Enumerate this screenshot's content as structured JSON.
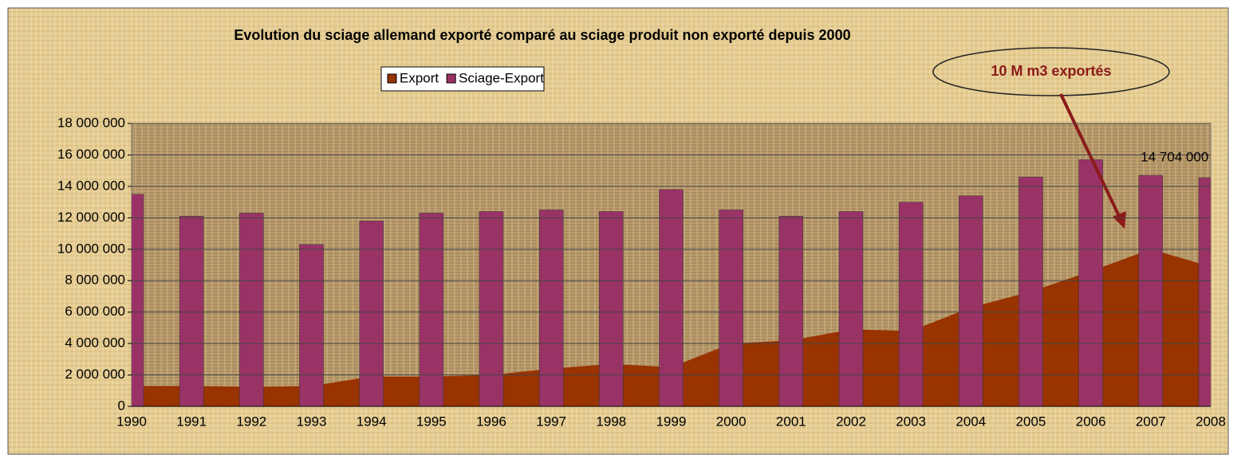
{
  "chart_data": {
    "type": "bar-area",
    "title": "Evolution du sciage allemand exporté comparé au sciage produit non exporté depuis 2000",
    "categories": [
      "1990",
      "1991",
      "1992",
      "1993",
      "1994",
      "1995",
      "1996",
      "1997",
      "1998",
      "1999",
      "2000",
      "2001",
      "2002",
      "2003",
      "2004",
      "2005",
      "2006",
      "2007",
      "2008"
    ],
    "series": [
      {
        "name": "Export",
        "color": "#993300",
        "kind": "area",
        "values": [
          1300000,
          1300000,
          1250000,
          1300000,
          1900000,
          1900000,
          2000000,
          2400000,
          2700000,
          2500000,
          4000000,
          4200000,
          4900000,
          4800000,
          6300000,
          7300000,
          8600000,
          10000000,
          8900000
        ]
      },
      {
        "name": "Sciage-Export",
        "color": "#993366",
        "kind": "bar",
        "values": [
          13500000,
          12100000,
          12300000,
          10300000,
          11800000,
          12300000,
          12400000,
          12500000,
          12400000,
          13800000,
          12500000,
          12100000,
          12400000,
          13000000,
          13400000,
          14600000,
          15700000,
          14704000,
          14550000
        ],
        "value_labels": [
          null,
          null,
          null,
          null,
          null,
          null,
          null,
          null,
          null,
          null,
          null,
          null,
          null,
          null,
          null,
          null,
          null,
          "14 704 000",
          null
        ]
      }
    ],
    "ylim": [
      0,
      18000000
    ],
    "yticks": [
      0,
      {
        "value": 2000000,
        "label": "2 000 000"
      },
      {
        "value": 4000000,
        "label": "4 000 000"
      },
      {
        "value": 6000000,
        "label": "6 000 000"
      },
      {
        "value": 8000000,
        "label": "8 000 000"
      },
      {
        "value": 10000000,
        "label": "10 000 000"
      },
      {
        "value": 12000000,
        "label": "12 000 000"
      },
      {
        "value": 14000000,
        "label": "14 000 000"
      },
      {
        "value": 16000000,
        "label": "16 000 000"
      },
      {
        "value": 18000000,
        "label": "18 000 000"
      }
    ],
    "grid": true,
    "legend": "top",
    "annotation": "10 M m3 exportés"
  }
}
